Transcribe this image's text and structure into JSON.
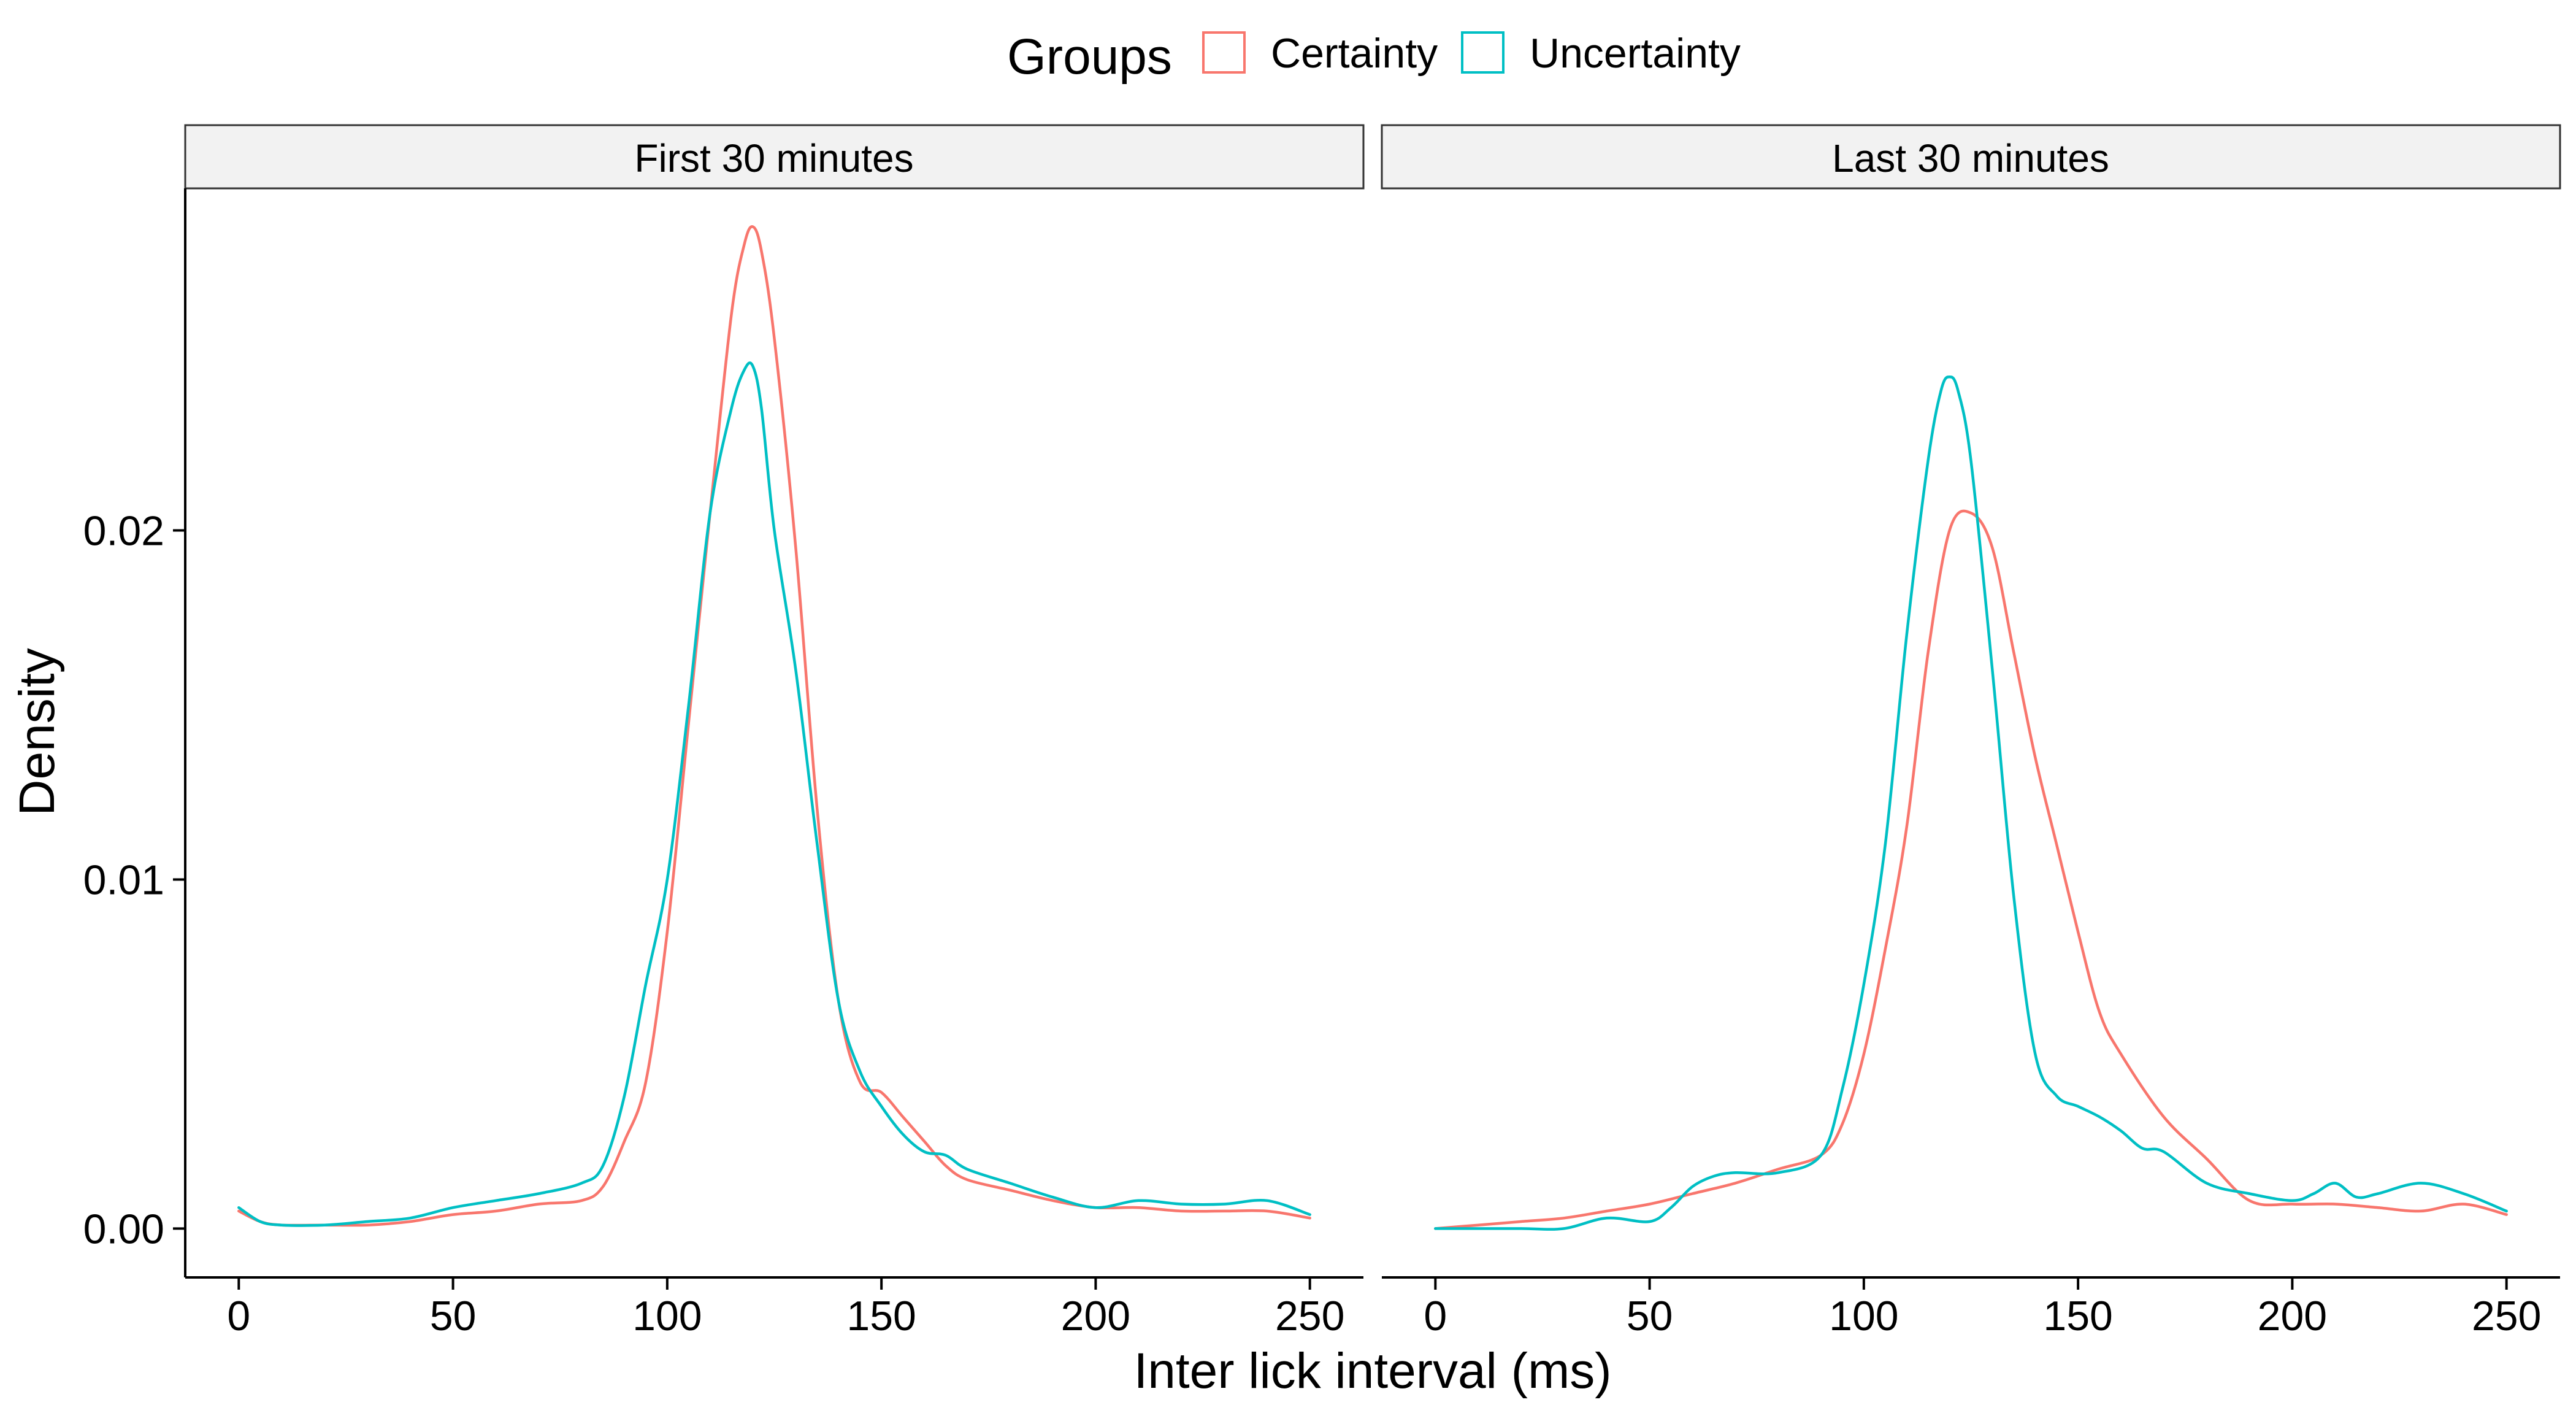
{
  "legend": {
    "title": "Groups",
    "position": "top",
    "items": [
      {
        "label": "Certainty",
        "color": "#F8766D"
      },
      {
        "label": "Uncertainty",
        "color": "#00BFC4"
      }
    ]
  },
  "axes": {
    "xlabel": "Inter lick interval (ms)",
    "ylabel": "Density"
  },
  "chart_data": {
    "type": "line",
    "title": "",
    "xlabel": "Inter lick interval (ms)",
    "ylabel": "Density",
    "xlim": [
      -12.5,
      262.5
    ],
    "ylim": [
      -0.0014,
      0.0298
    ],
    "x_ticks": [
      0,
      50,
      100,
      150,
      200,
      250
    ],
    "x_tick_labels": [
      "0",
      "50",
      "100",
      "150",
      "200",
      "250"
    ],
    "y_ticks": [
      0.0,
      0.01,
      0.02
    ],
    "y_tick_labels": [
      "0.00",
      "0.01",
      "0.02"
    ],
    "grid": false,
    "legend_position": "top",
    "facets": [
      {
        "label": "First 30 minutes",
        "series": [
          {
            "name": "Certainty",
            "color": "#F8766D",
            "x": [
              0,
              5,
              10,
              20,
              30,
              40,
              50,
              60,
              70,
              80,
              85,
              90,
              95,
              100,
              105,
              110,
              115,
              118,
              120,
              122,
              125,
              130,
              135,
              140,
              145,
              150,
              155,
              160,
              165,
              170,
              180,
              190,
              200,
              210,
              220,
              230,
              240,
              250
            ],
            "y": [
              0.0005,
              0.0002,
              0.0001,
              0.0001,
              0.0001,
              0.0002,
              0.0004,
              0.0005,
              0.0007,
              0.0008,
              0.0012,
              0.0025,
              0.0042,
              0.0085,
              0.0145,
              0.0205,
              0.0262,
              0.0282,
              0.0287,
              0.028,
              0.0255,
              0.0195,
              0.012,
              0.0065,
              0.0042,
              0.0039,
              0.0032,
              0.0025,
              0.0018,
              0.0014,
              0.0011,
              0.0008,
              0.0006,
              0.0006,
              0.0005,
              0.0005,
              0.0005,
              0.0003
            ]
          },
          {
            "name": "Uncertainty",
            "color": "#00BFC4",
            "x": [
              0,
              5,
              10,
              20,
              30,
              40,
              50,
              60,
              70,
              80,
              85,
              90,
              95,
              100,
              105,
              110,
              115,
              118,
              120,
              122,
              125,
              130,
              135,
              140,
              145,
              150,
              155,
              160,
              165,
              170,
              180,
              190,
              200,
              210,
              220,
              230,
              240,
              250
            ],
            "y": [
              0.0006,
              0.0002,
              0.0001,
              0.0001,
              0.0002,
              0.0003,
              0.0006,
              0.0008,
              0.001,
              0.0013,
              0.0018,
              0.0038,
              0.007,
              0.01,
              0.015,
              0.0205,
              0.0235,
              0.0246,
              0.0247,
              0.0235,
              0.02,
              0.016,
              0.011,
              0.0065,
              0.0045,
              0.0035,
              0.0027,
              0.0022,
              0.0021,
              0.0017,
              0.0013,
              0.0009,
              0.0006,
              0.0008,
              0.0007,
              0.0007,
              0.0008,
              0.0004
            ]
          }
        ]
      },
      {
        "label": "Last 30 minutes",
        "series": [
          {
            "name": "Certainty",
            "color": "#F8766D",
            "x": [
              0,
              10,
              20,
              30,
              40,
              50,
              60,
              70,
              80,
              90,
              95,
              100,
              105,
              110,
              115,
              120,
              125,
              130,
              135,
              140,
              145,
              150,
              155,
              160,
              170,
              180,
              190,
              200,
              210,
              220,
              230,
              240,
              250
            ],
            "y": [
              0.0,
              0.0001,
              0.0002,
              0.0003,
              0.0005,
              0.0007,
              0.001,
              0.0013,
              0.0017,
              0.0021,
              0.003,
              0.005,
              0.008,
              0.0115,
              0.0165,
              0.02,
              0.0205,
              0.0195,
              0.0165,
              0.0135,
              0.011,
              0.0085,
              0.0062,
              0.005,
              0.0032,
              0.002,
              0.0008,
              0.0007,
              0.0007,
              0.0006,
              0.0005,
              0.0007,
              0.0004
            ]
          },
          {
            "name": "Uncertainty",
            "color": "#00BFC4",
            "x": [
              0,
              10,
              20,
              30,
              40,
              50,
              55,
              60,
              65,
              70,
              80,
              90,
              95,
              100,
              105,
              110,
              115,
              118,
              120,
              122,
              125,
              130,
              135,
              140,
              145,
              150,
              155,
              160,
              165,
              170,
              180,
              190,
              200,
              205,
              210,
              215,
              220,
              230,
              240,
              250
            ],
            "y": [
              0.0,
              0.0,
              0.0,
              0.0,
              0.0003,
              0.0002,
              0.0006,
              0.0012,
              0.0015,
              0.0016,
              0.0016,
              0.0021,
              0.004,
              0.007,
              0.011,
              0.017,
              0.022,
              0.024,
              0.0244,
              0.024,
              0.022,
              0.016,
              0.0095,
              0.005,
              0.0038,
              0.0035,
              0.0032,
              0.0028,
              0.0023,
              0.0022,
              0.0013,
              0.001,
              0.0008,
              0.001,
              0.0013,
              0.0009,
              0.001,
              0.0013,
              0.001,
              0.0005
            ]
          }
        ]
      }
    ]
  }
}
